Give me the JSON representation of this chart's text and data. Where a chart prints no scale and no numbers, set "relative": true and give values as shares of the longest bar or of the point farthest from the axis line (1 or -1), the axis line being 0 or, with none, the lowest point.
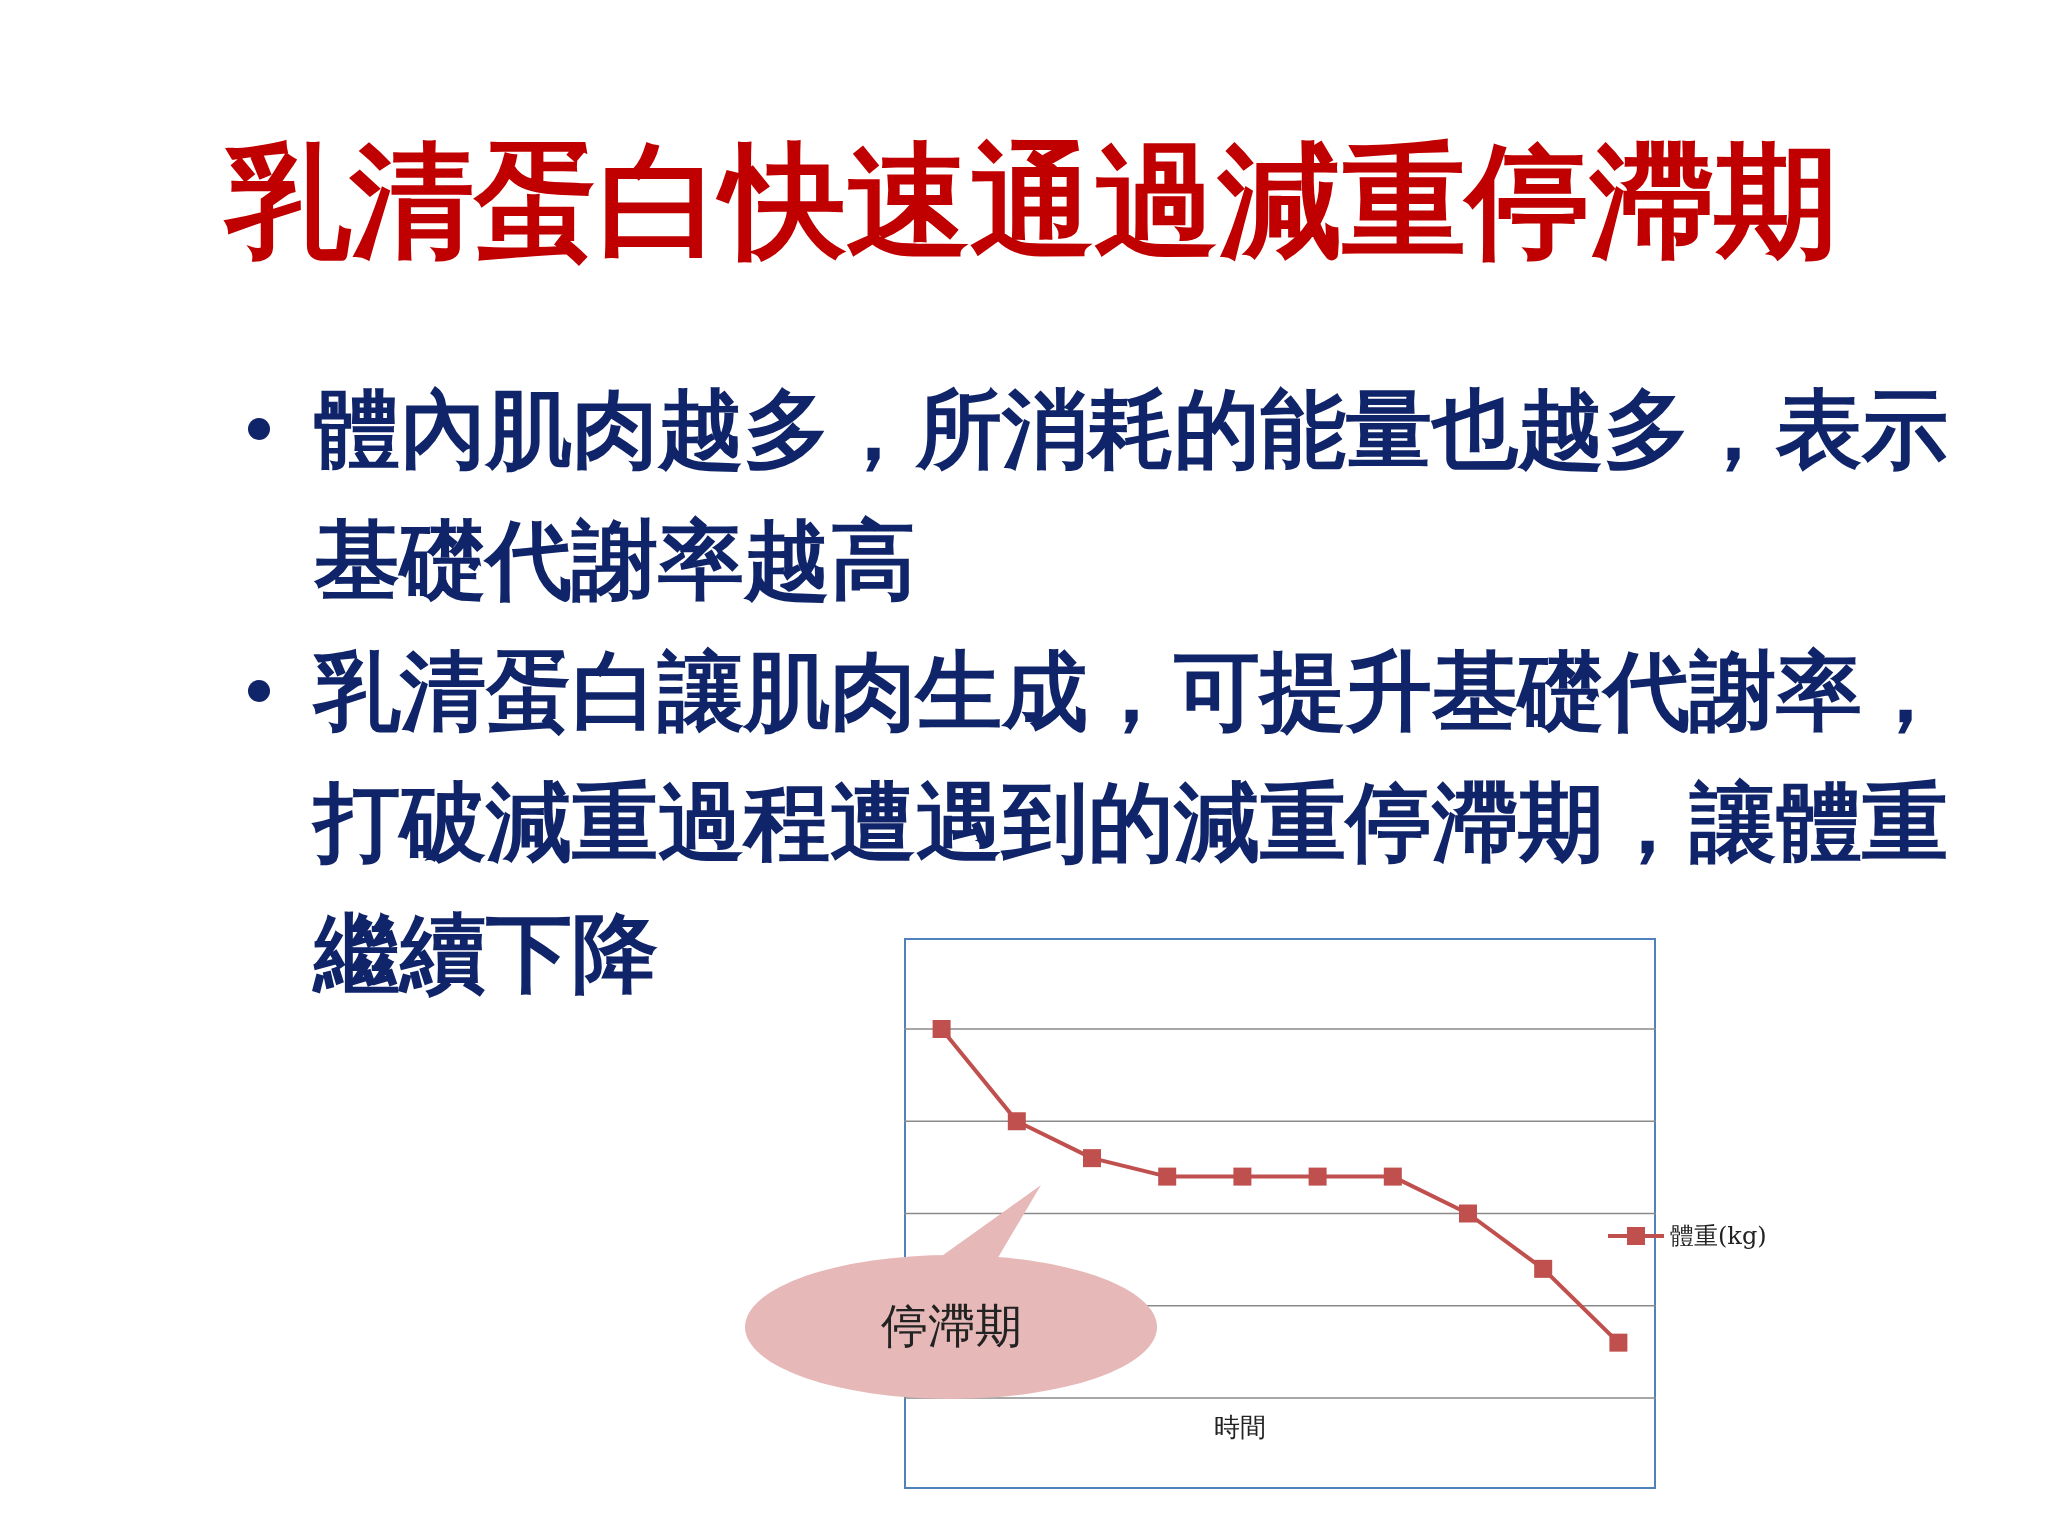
{
  "chart_data": {
    "type": "line",
    "title": "乳清蛋白快速通過減重停滯期",
    "xlabel": "時間",
    "annotations": [
      "體內肌肉越多，所消耗的能量也越多，表示基礎代謝率越高",
      "乳清蛋白讓肌肉生成，可提升基礎代謝率，打破減重過程遭遇到的減重停滯期，讓體重繼續下降",
      "停滯期"
    ],
    "categories": [
      null,
      null,
      null,
      null,
      null,
      null,
      null,
      null,
      null,
      null
    ],
    "series": [
      {
        "name": "體重(kg)",
        "color": "#c0504d",
        "values": [
          1,
          0.75,
          0.65,
          0.6,
          0.6,
          0.6,
          0.6,
          0.5,
          0.35,
          0.15
        ]
      }
    ],
    "relative": true,
    "grid": "y",
    "legend": "right",
    "marker": "square",
    "line_style": "solid"
  }
}
